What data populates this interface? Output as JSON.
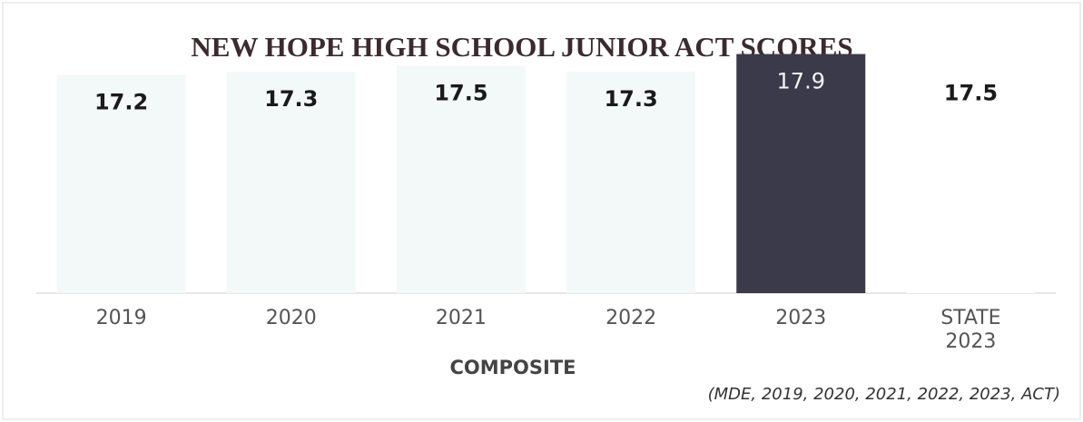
{
  "chart_data": {
    "type": "bar",
    "title": "NEW HOPE HIGH SCHOOL JUNIOR ACT SCORES",
    "xlabel": "COMPOSITE",
    "source": "(MDE, 2019, 2020, 2021, 2022, 2023, ACT)",
    "categories": [
      "2019",
      "2020",
      "2021",
      "2022",
      "2023",
      "STATE 2023"
    ],
    "values": [
      17.2,
      17.3,
      17.5,
      17.3,
      17.9,
      17.5
    ],
    "colors": [
      "#f3f8f8",
      "#f3f8f8",
      "#f3f8f8",
      "#f3f8f8",
      "#3b3a4a",
      "#ffffff"
    ],
    "ylim": [
      9.8,
      18.5
    ]
  }
}
